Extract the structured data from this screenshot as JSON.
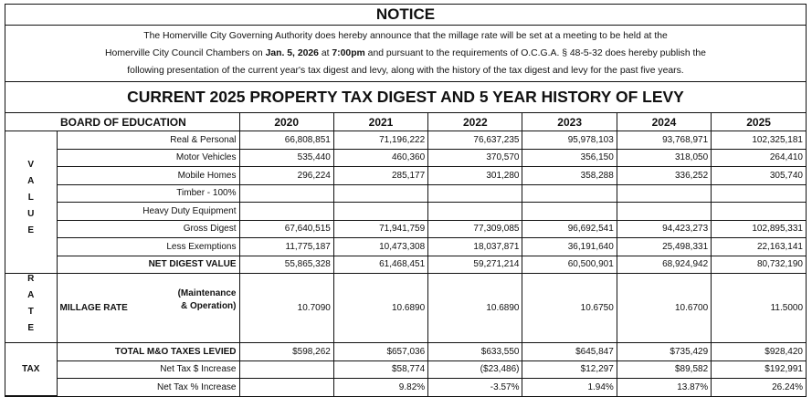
{
  "notice": {
    "title": "NOTICE",
    "lines": [
      [
        "The Homerville City Governing Authority does hereby announce that the millage rate will be set at a meeting to be held at the"
      ],
      [
        "Homerville City Council Chambers on ",
        "Jan. 5, 2026",
        " at ",
        "7:00pm",
        " and pursuant to the requirements of O.C.G.A. § 48-5-32 does hereby publish the"
      ],
      [
        "following presentation of the current year's tax digest and levy, along with the history of the tax digest and levy for the past five years."
      ]
    ],
    "bold_segments": [
      [
        1,
        1
      ],
      [
        1,
        3
      ]
    ]
  },
  "table": {
    "heading": "CURRENT 2025 PROPERTY TAX DIGEST AND 5 YEAR HISTORY OF LEVY",
    "header": {
      "label": "BOARD OF EDUCATION",
      "years": [
        "2020",
        "2021",
        "2022",
        "2023",
        "2024",
        "2025"
      ]
    },
    "sections": [
      {
        "label": "VALUE",
        "vertical": true,
        "rows": [
          {
            "label": "Real & Personal",
            "values": [
              "66,808,851",
              "71,196,222",
              "76,637,235",
              "95,978,103",
              "93,768,971",
              "102,325,181"
            ]
          },
          {
            "label": "Motor Vehicles",
            "values": [
              "535,440",
              "460,360",
              "370,570",
              "356,150",
              "318,050",
              "264,410"
            ]
          },
          {
            "label": "Mobile Homes",
            "values": [
              "296,224",
              "285,177",
              "301,280",
              "358,288",
              "336,252",
              "305,740"
            ]
          },
          {
            "label": "Timber - 100%",
            "values": [
              null,
              null,
              null,
              null,
              null,
              null
            ]
          },
          {
            "label": "Heavy Duty Equipment",
            "values": [
              null,
              null,
              null,
              null,
              null,
              null
            ]
          },
          {
            "label": "Gross Digest",
            "values": [
              "67,640,515",
              "71,941,759",
              "77,309,085",
              "96,692,541",
              "94,423,273",
              "102,895,331"
            ]
          },
          {
            "label": "Less Exemptions",
            "values": [
              "11,775,187",
              "10,473,308",
              "18,037,871",
              "36,191,640",
              "25,498,331",
              "22,163,141"
            ]
          },
          {
            "label": "NET DIGEST VALUE",
            "bold": true,
            "values": [
              "55,865,328",
              "61,468,451",
              "59,271,214",
              "60,500,901",
              "68,924,942",
              "80,732,190"
            ]
          }
        ]
      },
      {
        "label": "RATE",
        "vertical": true,
        "rows": [
          {
            "label": "MILLAGE RATE",
            "note": "(Maintenance & Operation)",
            "values": [
              "10.7090",
              "10.6890",
              "10.6890",
              "10.6750",
              "10.6700",
              "11.5000"
            ]
          }
        ]
      },
      {
        "label": "TAX",
        "vertical": false,
        "rows": [
          {
            "label": "TOTAL M&O TAXES LEVIED",
            "bold": true,
            "values": [
              "$598,262",
              "$657,036",
              "$633,550",
              "$645,847",
              "$735,429",
              "$928,420"
            ]
          },
          {
            "label": "Net Tax $ Increase",
            "values": [
              null,
              "$58,774",
              "($23,486)",
              "$12,297",
              "$89,582",
              "$192,991"
            ]
          },
          {
            "label": "Net Tax % Increase",
            "values": [
              null,
              "9.82%",
              "-3.57%",
              "1.94%",
              "13.87%",
              "26.24%"
            ]
          }
        ]
      }
    ]
  }
}
